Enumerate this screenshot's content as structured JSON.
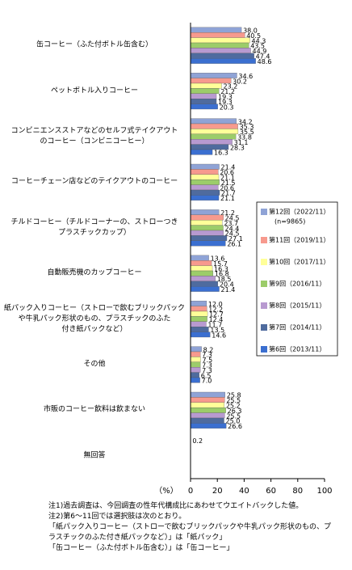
{
  "chart_data": {
    "type": "hbar",
    "categories": [
      "缶コーヒー（ふた付ボトル缶含む）",
      "ペットボトル入りコーヒー",
      "コンビニエンスストアなどのセルフ式テイクアウト\nのコーヒー（コンビニコーヒー）",
      "コーヒーチェーン店などのテイクアウトのコーヒー",
      "チルドコーヒー（チルドコーナーの、ストローつき\nプラスチックカップ）",
      "自動販売機のカップコーヒー",
      "紙パック入りコーヒー（ストローで飲むブリックパック\nや牛乳パック形状のもの、プラスチックのふた\n付き紙パックなど）",
      "その他",
      "市販のコーヒー飲料は飲まない",
      "無回答"
    ],
    "series": [
      {
        "name": "第12回（2022/11）",
        "color": "#8fa3d6",
        "values": [
          38.0,
          34.6,
          34.2,
          21.4,
          21.2,
          13.6,
          12.0,
          8.2,
          25.8,
          0.2
        ],
        "value_labels": [
          "38.0",
          "34.6",
          "34.2",
          "21.4",
          "21.2",
          "13.6",
          "12.0",
          "8.2",
          "25.8",
          "0.2"
        ]
      },
      {
        "name": "第11回（2019/11）",
        "color": "#f79a8e",
        "values": [
          40.5,
          30.2,
          35.3,
          20.6,
          24.5,
          15.7,
          12.2,
          7.3,
          25.5,
          null
        ],
        "value_labels": [
          "40.5",
          "30.2",
          "35.3",
          "20.6",
          "24.5",
          "15.7",
          "12.2",
          "7.3",
          "25.5",
          null
        ]
      },
      {
        "name": "第10回（2017/11）",
        "color": "#ffff99",
        "values": [
          44.3,
          23.2,
          35.5,
          21.1,
          23.7,
          16.3,
          12.7,
          7.5,
          25.2,
          null
        ],
        "value_labels": [
          "44.3",
          "23.2",
          "35.5",
          "21.1",
          "23.7",
          "16.3",
          "12.7",
          "7.5",
          "25.2",
          null
        ]
      },
      {
        "name": "第9回（2016/11）",
        "color": "#9ccc6a",
        "values": [
          43.5,
          21.2,
          33.8,
          21.5,
          24.4,
          16.8,
          12.4,
          7.3,
          26.3,
          null
        ],
        "value_labels": [
          "43.5",
          "21.2",
          "33.8",
          "21.5",
          "24.4",
          "16.8",
          "12.4",
          "7.3",
          "26.3",
          null
        ]
      },
      {
        "name": "第8回（2015/11）",
        "color": "#b89ad0",
        "values": [
          44.9,
          19.3,
          31.1,
          20.6,
          24.5,
          18.5,
          11.7,
          7.3,
          25.5,
          null
        ],
        "value_labels": [
          "44.9",
          "19.3",
          "31.1",
          "20.6",
          "24.5",
          "18.5",
          "11.7",
          "7.3",
          "25.5",
          null
        ]
      },
      {
        "name": "第7回（2014/11）",
        "color": "#4f6b9e",
        "values": [
          47.4,
          19.3,
          28.3,
          21.7,
          27.1,
          20.4,
          13.5,
          6.5,
          25.0,
          null
        ],
        "value_labels": [
          "47.4",
          "19.3",
          "28.3",
          "21.7",
          "27.1",
          "20.4",
          "13.5",
          "6.5",
          "25.0",
          null
        ]
      },
      {
        "name": "第6回（2013/11）",
        "color": "#3b6fd0",
        "values": [
          48.6,
          20.3,
          16.3,
          21.1,
          26.1,
          21.4,
          14.6,
          7.0,
          26.6,
          null
        ],
        "value_labels": [
          "48.6",
          "20.3",
          "16.3",
          "21.1",
          "26.1",
          "21.4",
          "14.6",
          "7.0",
          "26.6",
          null
        ]
      }
    ],
    "sample_note": "(n=9865)",
    "xlabel": "（%）",
    "xlim": [
      0,
      100
    ],
    "xticks": [
      0,
      20,
      40,
      60,
      80,
      100
    ],
    "notes": [
      "注1)過去調査は、今回調査の性年代構成比にあわせてウエイトバックした値。",
      "注2)第6～11回では選択肢は次のとおり。",
      "「紙パック入りコーヒー（ストローで飲むブリックパックや牛乳パック形状のもの、プ",
      "ラスチックのふた付き紙パックなど）」は「紙パック」",
      "「缶コーヒー（ふた付ボトル缶含む）」は「缶コーヒー」"
    ]
  }
}
